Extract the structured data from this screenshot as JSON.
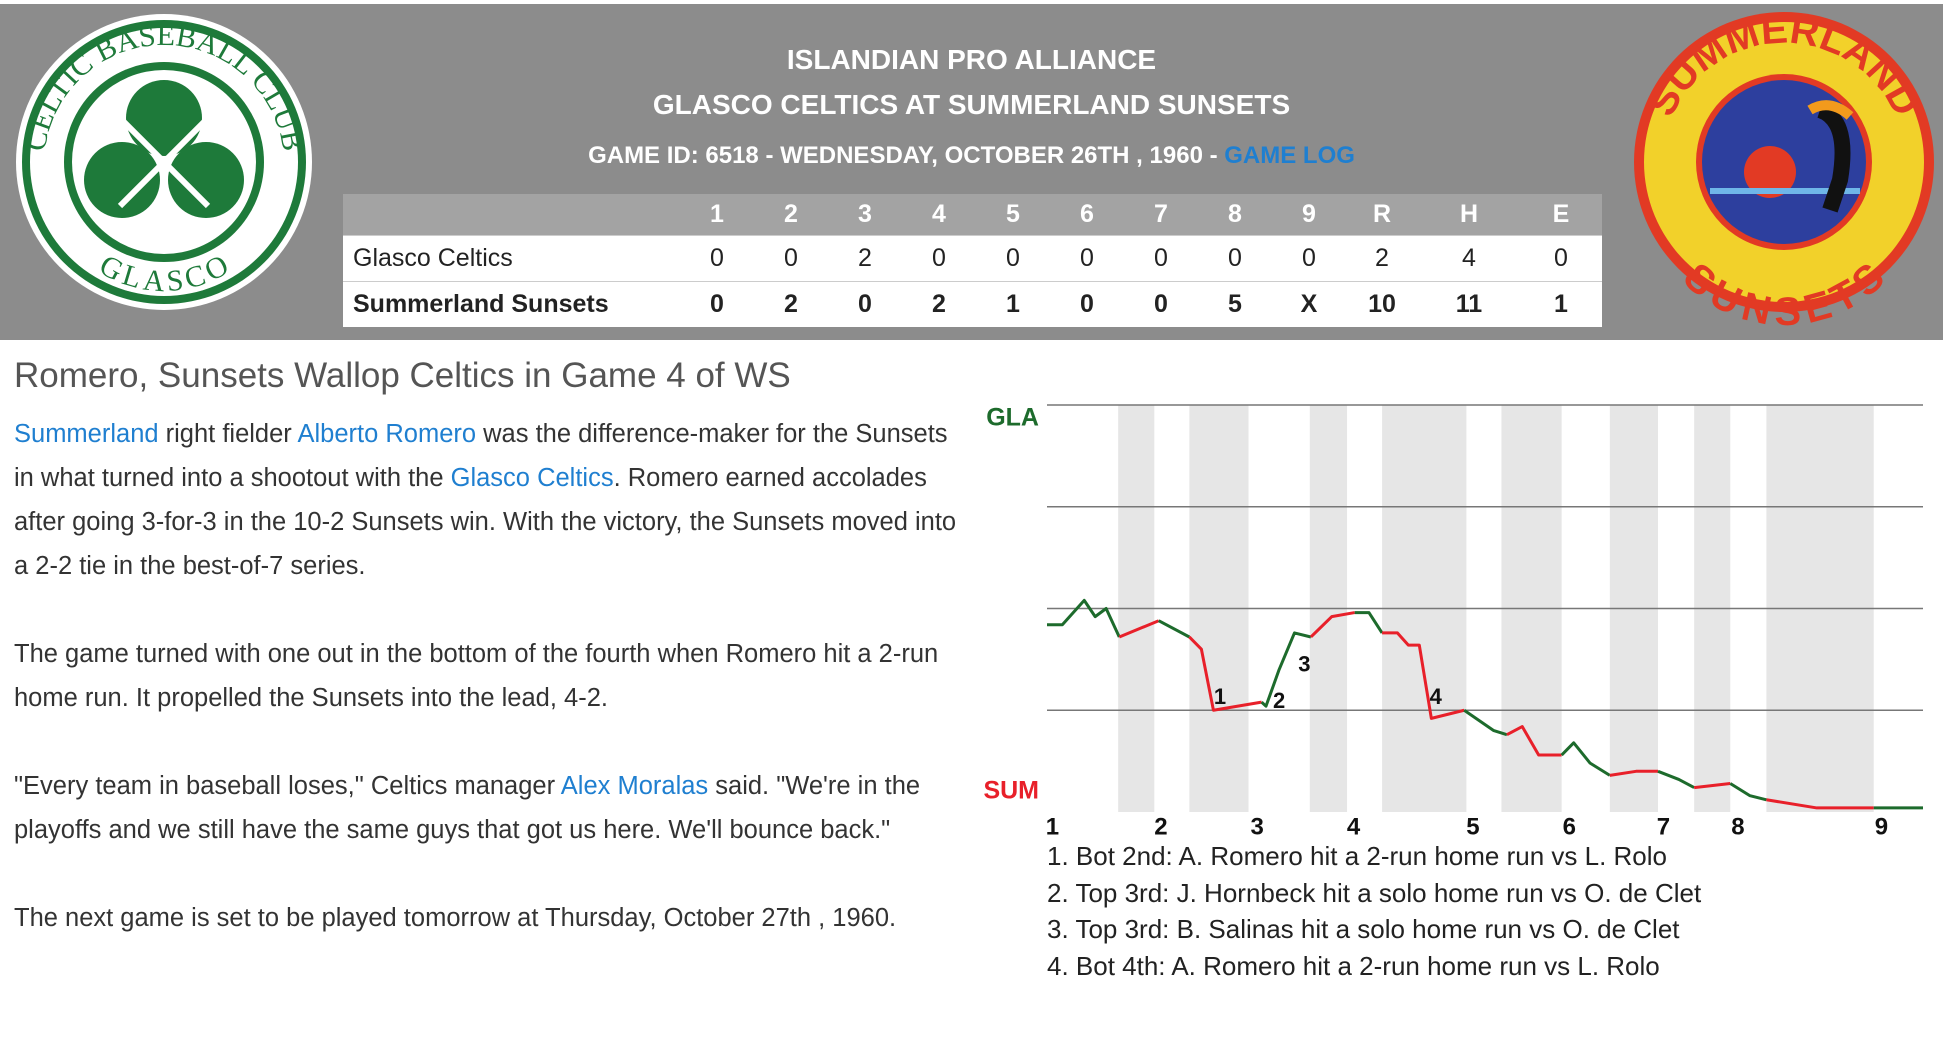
{
  "header": {
    "league": "ISLANDIAN PRO ALLIANCE",
    "matchup": "GLASCO CELTICS AT SUMMERLAND SUNSETS",
    "game_info": "GAME ID: 6518 - WEDNESDAY, OCTOBER 26TH , 1960 - ",
    "game_log_link": "GAME LOG"
  },
  "logos": {
    "away_top": "CELTIC BASEBALL CLUB",
    "away_bottom": "GLASCO",
    "home_top": "SUMMERLAND",
    "home_bottom": "SUNSETS"
  },
  "box_score": {
    "columns": [
      "1",
      "2",
      "3",
      "4",
      "5",
      "6",
      "7",
      "8",
      "9",
      "R",
      "H",
      "E"
    ],
    "rows": [
      {
        "team": "Glasco Celtics",
        "cells": [
          0,
          0,
          2,
          0,
          0,
          0,
          0,
          0,
          0,
          2,
          4,
          0
        ]
      },
      {
        "team": "Summerland Sunsets",
        "cells": [
          0,
          2,
          0,
          2,
          1,
          0,
          0,
          5,
          "X",
          10,
          11,
          1
        ]
      }
    ]
  },
  "article": {
    "headline": "Romero, Sunsets Wallop Celtics in Game 4 of WS",
    "paragraphs": [
      [
        {
          "text": "Summerland",
          "link": true
        },
        {
          "text": " right fielder "
        },
        {
          "text": "Alberto Romero",
          "link": true
        },
        {
          "text": " was the difference-maker for the Sunsets in what turned into a shootout with the "
        },
        {
          "text": "Glasco Celtics",
          "link": true
        },
        {
          "text": ". Romero earned accolades after going 3-for-3 in the 10-2 Sunsets win. With the victory, the Sunsets moved into a 2-2 tie in the best-of-7 series."
        }
      ],
      [
        {
          "text": "The game turned with one out in the bottom of the fourth when Romero hit a 2-run home run. It propelled the Sunsets into the lead, 4-2."
        }
      ],
      [
        {
          "text": "\"Every team in baseball loses,\" Celtics manager "
        },
        {
          "text": "Alex Moralas",
          "link": true
        },
        {
          "text": " said. \"We're in the playoffs and we still have the same guys that got us here. We'll bounce back.\""
        }
      ],
      [
        {
          "text": "The next game is set to be played tomorrow at Thursday, October 27th , 1960."
        }
      ]
    ]
  },
  "win_probability": {
    "type": "line",
    "y_labels": {
      "top": "GLA",
      "bottom": "SUM"
    },
    "x": [
      0,
      1.4,
      3.4,
      4.4,
      5.4,
      6.6,
      10.2,
      13,
      14.1,
      15.2,
      19.6,
      20,
      21.2,
      22.6,
      24.1,
      26,
      28.1,
      29.4,
      30.6,
      32,
      33,
      34,
      35.1,
      38.1,
      40.8,
      42,
      43.4,
      44.9,
      47,
      48.1,
      49.6,
      51.4,
      53.8,
      55.8,
      57.7,
      59.1,
      62.4,
      64.2,
      65.7,
      70.3,
      75.5,
      80
    ],
    "values": [
      46,
      46,
      52,
      48,
      50,
      43,
      47,
      43,
      40,
      25,
      27,
      26,
      35,
      44,
      43,
      48,
      49,
      49,
      44,
      44,
      41,
      41,
      23,
      25,
      20,
      19,
      21,
      14,
      14,
      17,
      12,
      9,
      10,
      10,
      8,
      6,
      7,
      4,
      3,
      1,
      1,
      1
    ],
    "xlim": [
      0,
      80
    ],
    "ylim": [
      0,
      100
    ],
    "yticks": [
      25,
      50,
      75,
      100
    ],
    "xticks": [
      {
        "value": 0.5,
        "label": "1"
      },
      {
        "value": 10.4,
        "label": "2"
      },
      {
        "value": 19.2,
        "label": "3"
      },
      {
        "value": 28,
        "label": "4"
      },
      {
        "value": 38.9,
        "label": "5"
      },
      {
        "value": 47.7,
        "label": "6"
      },
      {
        "value": 56.3,
        "label": "7"
      },
      {
        "value": 63.1,
        "label": "8"
      },
      {
        "value": 76.2,
        "label": "9"
      }
    ],
    "bottom_half_spans": [
      [
        6.5,
        9.8
      ],
      [
        13,
        18.4
      ],
      [
        24,
        27.4
      ],
      [
        30.6,
        38.3
      ],
      [
        41.5,
        47
      ],
      [
        51.4,
        55.8
      ],
      [
        59.1,
        62.4
      ],
      [
        65.7,
        75.5
      ]
    ],
    "top_color": "#1d6b2c",
    "bottom_color": "#e8202a",
    "markers": [
      {
        "x": 15.8,
        "value": 28,
        "label": "1"
      },
      {
        "x": 21.2,
        "value": 27,
        "label": "2"
      },
      {
        "x": 23.5,
        "value": 36,
        "label": "3"
      },
      {
        "x": 35.5,
        "value": 28,
        "label": "4"
      }
    ]
  },
  "notes": [
    "1. Bot 2nd: A. Romero hit a 2-run home run vs L. Rolo",
    "2. Top 3rd: J. Hornbeck hit a solo home run vs O. de Clet",
    "3. Top 3rd: B. Salinas hit a solo home run vs O. de Clet",
    "4. Bot 4th: A. Romero hit a 2-run home run vs L. Rolo"
  ]
}
